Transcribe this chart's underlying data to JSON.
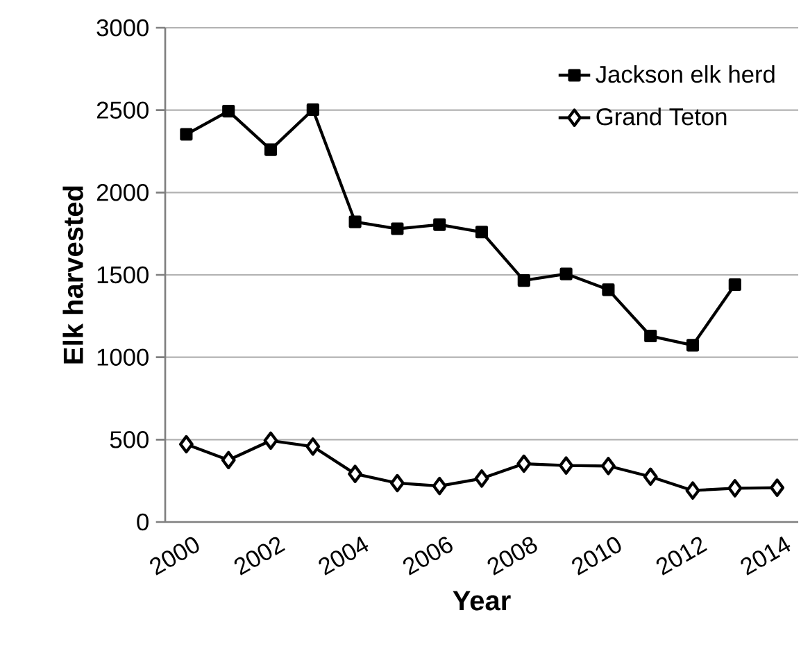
{
  "chart_data": {
    "type": "line",
    "xlabel": "Year",
    "ylabel": "Elk harvested",
    "categories": [
      "2000",
      null,
      "2002",
      null,
      "2004",
      null,
      "2006",
      null,
      "2008",
      null,
      "2010",
      null,
      "2012",
      null,
      "2014"
    ],
    "series": [
      {
        "name": "Jackson elk herd",
        "color": "#000000",
        "marker": "square",
        "values": [
          2353,
          2494,
          2260,
          2503,
          1822,
          1780,
          1805,
          1760,
          1466,
          1506,
          1410,
          1129,
          1073,
          1441,
          null
        ]
      },
      {
        "name": "Grand Teton",
        "color": "#000000",
        "marker": "diamond",
        "values": [
          472,
          376,
          494,
          458,
          292,
          236,
          219,
          264,
          354,
          343,
          340,
          275,
          191,
          205,
          208
        ]
      }
    ],
    "ylim": [
      0,
      3000
    ],
    "yticks": [
      0,
      500,
      1000,
      1500,
      2000,
      2500,
      3000
    ],
    "grid": "y",
    "legend": "top right",
    "line_style": "solid"
  }
}
